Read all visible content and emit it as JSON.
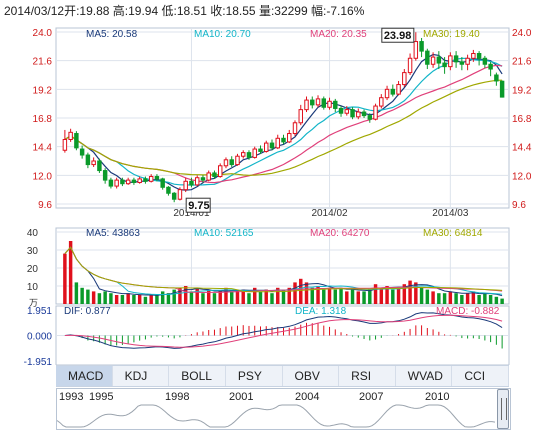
{
  "header": {
    "date": "2014/03/12",
    "open_label": "开:",
    "open": "19.88",
    "high_label": "高:",
    "high": "19.94",
    "low_label": "低:",
    "low": "18.51",
    "close_label": "收:",
    "close": "18.55",
    "vol_label": "量:",
    "vol": "32299",
    "chg_label": "幅:",
    "chg": "-7.16%"
  },
  "ma_legend": {
    "ma5": "MA5: 20.58",
    "ma10": "MA10: 20.70",
    "ma20": "MA20: 20.35",
    "ma30": "MA30: 19.40"
  },
  "vol_legend": {
    "ma5": "MA5: 43863",
    "ma10": "MA10: 52165",
    "ma20": "MA20: 64270",
    "ma30": "MA30: 64814"
  },
  "macd_legend": {
    "dif": "DIF: 0.877",
    "dea": "DEA: 1.318",
    "macd": "MACD: -0.882"
  },
  "tabs": [
    "MACD",
    "KDJ",
    "BOLL",
    "PSY",
    "OBV",
    "RSI",
    "WVAD",
    "CCI"
  ],
  "nav_years": [
    "1993",
    "1995",
    "1998",
    "2001",
    "2004",
    "2007",
    "2010"
  ],
  "colors": {
    "up": "#e0101c",
    "down": "#0a9a2a",
    "ma5": "#1a3a7a",
    "ma10": "#12b5c8",
    "ma20": "#e0407a",
    "ma30": "#a0a800",
    "grid": "#dde3ec",
    "axis": "#999999"
  },
  "chart_data": {
    "type": "candlestick",
    "price_axis": {
      "ticks": [
        "24.0",
        "21.6",
        "19.2",
        "16.8",
        "14.4",
        "12.0",
        "9.6"
      ],
      "ylim": [
        9.6,
        24.0
      ]
    },
    "volume_axis": {
      "ticks": [
        "40",
        "30",
        "20",
        "10"
      ],
      "unit": "万",
      "ylim": [
        0,
        40
      ]
    },
    "macd_axis": {
      "ticks": [
        "1.951",
        "0.000",
        "-1.951"
      ],
      "ylim": [
        -1.951,
        1.951
      ]
    },
    "x_tick_labels": [
      "2014/01",
      "2014/02",
      "2014/03"
    ],
    "annotations": {
      "max": "23.98",
      "min": "9.75"
    },
    "candles": [
      [
        14.1,
        15.0,
        15.8,
        13.9
      ],
      [
        15.0,
        15.6,
        15.9,
        14.8
      ],
      [
        15.5,
        14.3,
        15.7,
        14.1
      ],
      [
        14.2,
        13.7,
        14.5,
        13.4
      ],
      [
        13.7,
        12.9,
        13.9,
        12.6
      ],
      [
        12.9,
        13.2,
        13.5,
        12.7
      ],
      [
        13.2,
        12.4,
        13.4,
        12.2
      ],
      [
        12.4,
        11.6,
        12.6,
        11.3
      ],
      [
        11.6,
        11.1,
        11.8,
        10.9
      ],
      [
        11.1,
        11.6,
        11.8,
        10.9
      ],
      [
        11.6,
        11.3,
        11.8,
        11.1
      ],
      [
        11.3,
        11.6,
        11.8,
        11.2
      ],
      [
        11.6,
        11.4,
        11.8,
        11.2
      ],
      [
        11.4,
        11.7,
        11.9,
        11.3
      ],
      [
        11.7,
        11.5,
        11.9,
        11.3
      ],
      [
        11.5,
        11.9,
        12.1,
        11.4
      ],
      [
        11.9,
        11.7,
        12.1,
        11.5
      ],
      [
        11.7,
        11.0,
        11.8,
        10.8
      ],
      [
        11.0,
        10.5,
        11.1,
        10.3
      ],
      [
        10.5,
        10.0,
        10.6,
        9.75
      ],
      [
        10.0,
        10.8,
        11.0,
        9.9
      ],
      [
        10.8,
        11.5,
        11.8,
        10.6
      ],
      [
        11.5,
        11.2,
        11.8,
        11.0
      ],
      [
        11.2,
        11.8,
        12.0,
        11.1
      ],
      [
        11.8,
        11.6,
        12.0,
        11.4
      ],
      [
        11.6,
        12.2,
        12.4,
        11.5
      ],
      [
        12.2,
        11.9,
        12.4,
        11.7
      ],
      [
        11.9,
        12.8,
        13.0,
        11.8
      ],
      [
        12.8,
        13.3,
        13.5,
        12.6
      ],
      [
        13.3,
        12.9,
        13.6,
        12.7
      ],
      [
        12.9,
        13.6,
        13.8,
        12.8
      ],
      [
        13.6,
        13.9,
        14.1,
        13.4
      ],
      [
        13.9,
        13.5,
        14.1,
        13.3
      ],
      [
        13.5,
        14.2,
        14.4,
        13.4
      ],
      [
        14.2,
        14.0,
        14.5,
        13.8
      ],
      [
        14.0,
        14.7,
        14.9,
        13.9
      ],
      [
        14.7,
        14.3,
        15.0,
        14.1
      ],
      [
        14.3,
        15.1,
        15.4,
        14.2
      ],
      [
        15.1,
        14.8,
        15.4,
        14.6
      ],
      [
        14.8,
        15.5,
        15.8,
        14.7
      ],
      [
        15.5,
        16.4,
        16.6,
        15.3
      ],
      [
        16.4,
        17.5,
        17.9,
        16.2
      ],
      [
        17.5,
        18.3,
        18.6,
        17.3
      ],
      [
        18.3,
        17.9,
        18.6,
        17.6
      ],
      [
        17.9,
        18.4,
        18.7,
        17.7
      ],
      [
        18.4,
        17.7,
        18.6,
        17.5
      ],
      [
        17.7,
        18.2,
        18.5,
        17.5
      ],
      [
        18.2,
        17.6,
        18.4,
        17.3
      ],
      [
        17.6,
        17.2,
        17.8,
        16.9
      ],
      [
        17.2,
        17.5,
        17.8,
        17.0
      ],
      [
        17.5,
        16.9,
        17.7,
        16.7
      ],
      [
        16.9,
        17.3,
        17.6,
        16.7
      ],
      [
        17.3,
        17.0,
        17.5,
        16.8
      ],
      [
        17.0,
        16.7,
        17.2,
        16.4
      ],
      [
        16.7,
        17.8,
        18.0,
        16.6
      ],
      [
        17.8,
        18.5,
        18.8,
        17.6
      ],
      [
        18.5,
        19.2,
        19.5,
        18.3
      ],
      [
        19.2,
        18.8,
        19.6,
        18.6
      ],
      [
        18.8,
        19.6,
        19.9,
        18.7
      ],
      [
        19.6,
        20.6,
        20.9,
        19.4
      ],
      [
        20.6,
        21.8,
        22.2,
        20.4
      ],
      [
        21.8,
        23.2,
        23.98,
        21.6
      ],
      [
        23.2,
        22.4,
        23.5,
        21.9
      ],
      [
        22.4,
        21.3,
        22.6,
        20.9
      ],
      [
        21.3,
        21.9,
        22.3,
        21.0
      ],
      [
        21.9,
        21.4,
        22.4,
        20.9
      ],
      [
        21.4,
        21.1,
        21.9,
        20.5
      ],
      [
        21.1,
        22.0,
        22.3,
        20.8
      ],
      [
        22.0,
        21.5,
        22.4,
        21.0
      ],
      [
        21.5,
        21.3,
        21.9,
        20.8
      ],
      [
        21.3,
        21.8,
        22.1,
        20.8
      ],
      [
        21.8,
        22.2,
        22.5,
        21.5
      ],
      [
        22.2,
        21.8,
        22.4,
        21.2
      ],
      [
        21.8,
        21.3,
        22.0,
        21.0
      ],
      [
        21.3,
        20.9,
        21.5,
        20.3
      ],
      [
        20.4,
        19.9,
        20.6,
        19.5
      ],
      [
        19.88,
        18.55,
        19.94,
        18.51
      ]
    ],
    "volume": [
      28,
      35,
      12,
      9,
      8,
      7,
      6,
      7,
      6,
      5,
      5,
      6,
      5,
      5,
      4,
      5,
      5,
      7,
      6,
      8,
      9,
      10,
      7,
      9,
      6,
      8,
      6,
      7,
      9,
      7,
      8,
      8,
      6,
      9,
      7,
      8,
      6,
      9,
      8,
      9,
      12,
      14,
      12,
      9,
      10,
      8,
      9,
      8,
      9,
      7,
      8,
      7,
      7,
      8,
      11,
      9,
      10,
      8,
      9,
      11,
      13,
      12,
      9,
      8,
      7,
      6,
      6,
      7,
      6,
      5,
      6,
      7,
      5,
      6,
      5,
      4,
      3
    ]
  }
}
